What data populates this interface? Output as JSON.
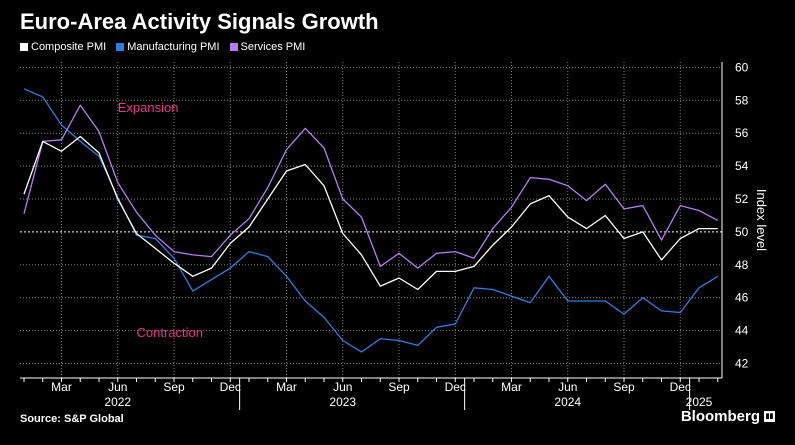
{
  "title": "Euro-Area Activity Signals Growth",
  "source": "Source: S&P Global",
  "brand": "Bloomberg",
  "colors": {
    "composite": "#ffffff",
    "manufacturing": "#2f7de1",
    "services": "#b77cf0",
    "annotation": "#e8348a",
    "grid": "#bbbbbb",
    "background": "#000000"
  },
  "chart_data": {
    "type": "line",
    "title": "Euro-Area Activity Signals Growth",
    "ylabel": "Index level",
    "ylim": [
      41,
      60
    ],
    "yticks": [
      42,
      44,
      46,
      48,
      50,
      52,
      54,
      56,
      58,
      60
    ],
    "grid": true,
    "legend": "top-left",
    "x": [
      "2022-01",
      "2022-02",
      "2022-03",
      "2022-04",
      "2022-05",
      "2022-06",
      "2022-07",
      "2022-08",
      "2022-09",
      "2022-10",
      "2022-11",
      "2022-12",
      "2023-01",
      "2023-02",
      "2023-03",
      "2023-04",
      "2023-05",
      "2023-06",
      "2023-07",
      "2023-08",
      "2023-09",
      "2023-10",
      "2023-11",
      "2023-12",
      "2024-01",
      "2024-02",
      "2024-03",
      "2024-04",
      "2024-05",
      "2024-06",
      "2024-07",
      "2024-08",
      "2024-09",
      "2024-10",
      "2024-11",
      "2024-12",
      "2025-01",
      "2025-02"
    ],
    "xtick_labels": [
      {
        "label": "Mar",
        "x": "2022-03"
      },
      {
        "label": "Jun",
        "x": "2022-06"
      },
      {
        "label": "Sep",
        "x": "2022-09"
      },
      {
        "label": "Dec",
        "x": "2022-12"
      },
      {
        "label": "Mar",
        "x": "2023-03"
      },
      {
        "label": "Jun",
        "x": "2023-06"
      },
      {
        "label": "Sep",
        "x": "2023-09"
      },
      {
        "label": "Dec",
        "x": "2023-12"
      },
      {
        "label": "Mar",
        "x": "2024-03"
      },
      {
        "label": "Jun",
        "x": "2024-06"
      },
      {
        "label": "Sep",
        "x": "2024-09"
      },
      {
        "label": "Dec",
        "x": "2024-12"
      }
    ],
    "year_labels": [
      {
        "label": "2022",
        "x": "2022-06"
      },
      {
        "label": "2023",
        "x": "2023-06"
      },
      {
        "label": "2024",
        "x": "2024-06"
      },
      {
        "label": "2025",
        "x": "2025-01"
      }
    ],
    "year_separators": [
      "2022-12",
      "2023-12",
      "2024-12"
    ],
    "reference_line": 50,
    "annotations": [
      {
        "text": "Expansion",
        "x": "2022-06",
        "y": 57.3
      },
      {
        "text": "Contraction",
        "x": "2022-07",
        "y": 43.6
      }
    ],
    "series": [
      {
        "name": "Composite PMI",
        "values": [
          52.3,
          55.5,
          54.9,
          55.8,
          54.8,
          52.0,
          49.9,
          49.0,
          48.1,
          47.3,
          47.8,
          49.3,
          50.3,
          52.0,
          53.7,
          54.1,
          52.8,
          49.9,
          48.6,
          46.7,
          47.2,
          46.5,
          47.6,
          47.6,
          47.9,
          49.2,
          50.3,
          51.7,
          52.2,
          50.9,
          50.2,
          51.0,
          49.6,
          50.0,
          48.3,
          49.6,
          50.2,
          50.2
        ]
      },
      {
        "name": "Manufacturing PMI",
        "values": [
          58.7,
          58.2,
          56.5,
          55.5,
          54.6,
          52.1,
          49.8,
          49.6,
          48.4,
          46.4,
          47.1,
          47.8,
          48.8,
          48.5,
          47.3,
          45.8,
          44.8,
          43.4,
          42.7,
          43.5,
          43.4,
          43.1,
          44.2,
          44.4,
          46.6,
          46.5,
          46.1,
          45.7,
          47.3,
          45.8,
          45.8,
          45.8,
          45.0,
          46.0,
          45.2,
          45.1,
          46.6,
          47.3
        ]
      },
      {
        "name": "Services PMI",
        "values": [
          51.1,
          55.5,
          55.6,
          57.7,
          56.1,
          53.0,
          51.2,
          49.8,
          48.8,
          48.6,
          48.5,
          49.8,
          50.8,
          52.7,
          55.0,
          56.3,
          55.1,
          52.0,
          50.9,
          47.9,
          48.7,
          47.8,
          48.7,
          48.8,
          48.4,
          50.2,
          51.5,
          53.3,
          53.2,
          52.8,
          51.9,
          52.9,
          51.4,
          51.6,
          49.5,
          51.6,
          51.3,
          50.7
        ]
      }
    ]
  }
}
